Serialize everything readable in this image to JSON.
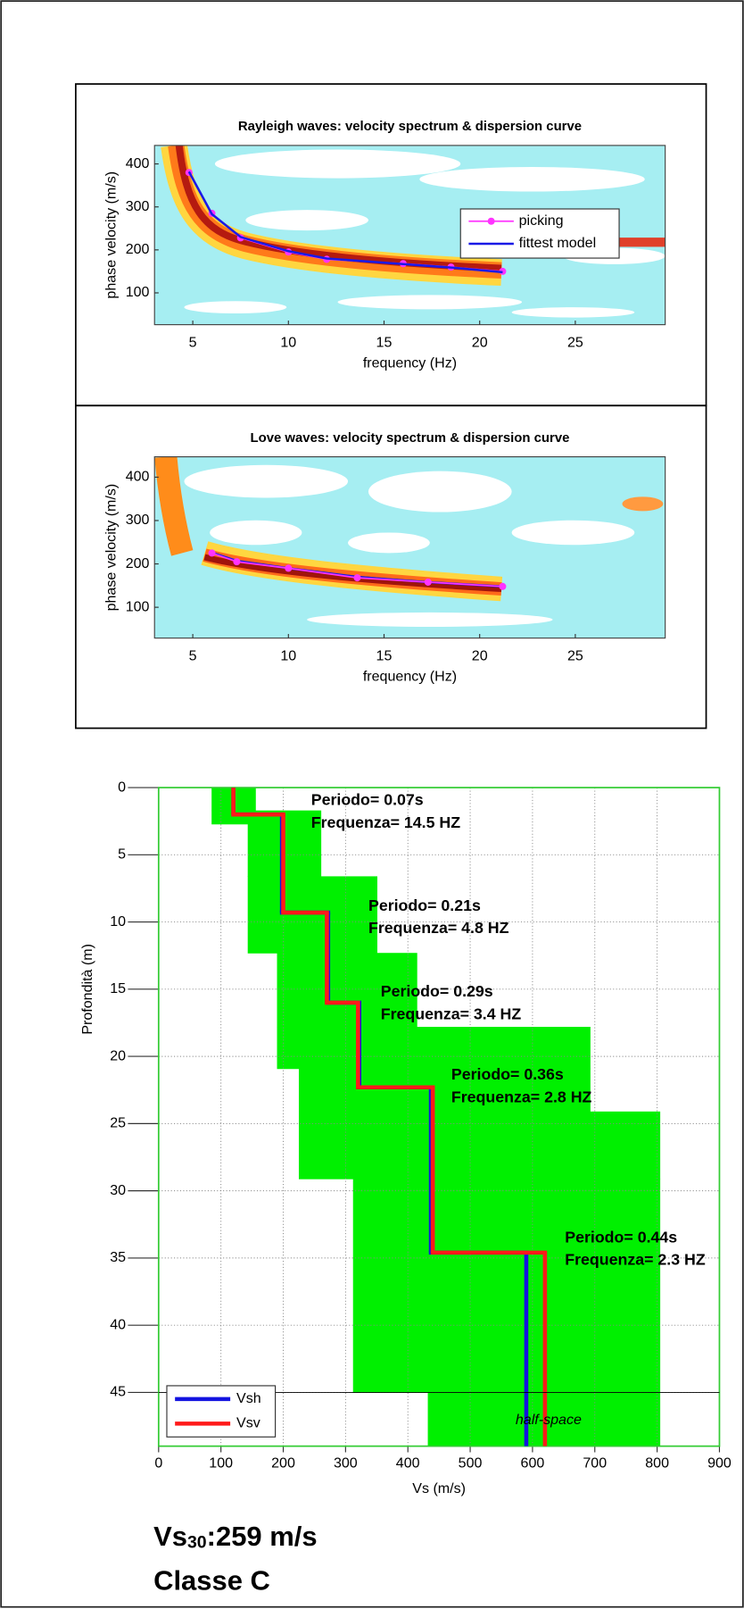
{
  "chart_data": [
    {
      "type": "line",
      "title": "Rayleigh waves: velocity spectrum & dispersion curve",
      "x_label": "frequency (Hz)",
      "y_label": "phase velocity (m/s)",
      "xlim": [
        3,
        29.7
      ],
      "ylim": [
        26,
        443
      ],
      "xticks": [
        5,
        10,
        15,
        20,
        25
      ],
      "yticks": [
        100,
        200,
        300,
        400
      ],
      "legend": "upper right",
      "series": [
        {
          "name": "picking",
          "color": "#ff33ff",
          "markers": true,
          "x": [
            4.8,
            6,
            7.5,
            10,
            12,
            16,
            18.5,
            21.2
          ],
          "values": [
            380,
            285,
            228,
            195,
            178,
            168,
            160,
            150
          ]
        },
        {
          "name": "fittest model",
          "color": "#1a1ae6",
          "markers": false,
          "x": [
            4.8,
            6,
            7.5,
            10,
            12,
            16,
            18.5,
            21.2
          ],
          "values": [
            382,
            283,
            230,
            197,
            180,
            167,
            159,
            148
          ]
        }
      ]
    },
    {
      "type": "line",
      "title": "Love waves: velocity spectrum & dispersion curve",
      "x_label": "frequency (Hz)",
      "y_label": "phase velocity (m/s)",
      "xlim": [
        3,
        29.7
      ],
      "ylim": [
        29,
        447
      ],
      "xticks": [
        5,
        10,
        15,
        20,
        25
      ],
      "yticks": [
        100,
        200,
        300,
        400
      ],
      "series": [
        {
          "color": "#1a1ae6",
          "markers": false,
          "x": [
            6,
            7.3,
            10,
            13.6,
            17.3,
            21.2
          ],
          "values": [
            226,
            207,
            190,
            170,
            158,
            148
          ]
        },
        {
          "color": "#ff33ff",
          "markers": true,
          "x": [
            6,
            7.3,
            10,
            13.6,
            17.3,
            21.2
          ],
          "values": [
            225,
            205,
            190,
            168,
            158,
            148
          ]
        }
      ]
    },
    {
      "type": "profile",
      "x_label": "Vs (m/s)",
      "y_label": "Profondità (m)",
      "xlim": [
        0,
        900
      ],
      "ylim": [
        0,
        49
      ],
      "xticks": [
        0,
        100,
        200,
        300,
        400,
        500,
        600,
        700,
        800,
        900
      ],
      "yticks": [
        0,
        5,
        10,
        15,
        20,
        25,
        30,
        35,
        40,
        45
      ],
      "grid": true,
      "legend": "lower left",
      "layer_tops": [
        0,
        2,
        9.3,
        16,
        22.3,
        34.6
      ],
      "series": [
        {
          "name": "Vsh",
          "color": "#1414e0",
          "values": [
            120,
            198,
            272,
            322,
            437,
            590
          ]
        },
        {
          "name": "Vsv",
          "color": "#ff1a1a",
          "values": [
            120,
            200,
            270,
            320,
            440,
            620
          ]
        }
      ],
      "search_range": {
        "color": "#00f000",
        "top": [
          0,
          1.7,
          2.7,
          6.6,
          12.3,
          17.8,
          20.9,
          24.1,
          29.1,
          45
        ],
        "bottom": [
          1.7,
          2.7,
          6.6,
          12.3,
          17.8,
          20.9,
          24.1,
          29.1,
          45,
          49
        ],
        "min": [
          85,
          85,
          143,
          143,
          190,
          190,
          225,
          225,
          312,
          432
        ],
        "max": [
          156,
          261,
          261,
          351,
          415,
          693,
          693,
          805,
          805,
          805
        ]
      },
      "annotations": [
        [
          "Periodo= 0.07s",
          "Frequenza= 14.5 HZ"
        ],
        [
          "Periodo= 0.21s",
          "Frequenza= 4.8 HZ"
        ],
        [
          "Periodo= 0.29s",
          "Frequenza= 3.4 HZ"
        ],
        [
          "Periodo= 0.36s",
          "Frequenza= 2.8 HZ"
        ],
        [
          "Periodo= 0.44s",
          "Frequenza= 2.3 HZ"
        ]
      ],
      "half_space_label": "half-space"
    }
  ],
  "summary": {
    "vs_prefix": "Vs",
    "vs_subscript": "30",
    "vs_value": ":259 m/s",
    "class": "Classe C"
  }
}
